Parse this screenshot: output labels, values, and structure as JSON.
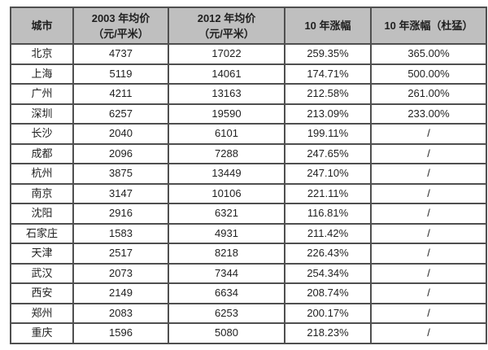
{
  "chart_data": {
    "type": "table",
    "title": "",
    "columns": [
      "城市",
      "2003 年均价（元/平米）",
      "2012 年均价（元/平米）",
      "10 年涨幅",
      "10 年涨幅（杜猛）"
    ],
    "header_lines": [
      [
        "城市"
      ],
      [
        "2003 年均价",
        "（元/平米）"
      ],
      [
        "2012 年均价",
        "（元/平米）"
      ],
      [
        "10 年涨幅"
      ],
      [
        "10 年涨幅（杜猛）"
      ]
    ],
    "rows": [
      [
        "北京",
        "4737",
        "17022",
        "259.35%",
        "365.00%"
      ],
      [
        "上海",
        "5119",
        "14061",
        "174.71%",
        "500.00%"
      ],
      [
        "广州",
        "4211",
        "13163",
        "212.58%",
        "261.00%"
      ],
      [
        "深圳",
        "6257",
        "19590",
        "213.09%",
        "233.00%"
      ],
      [
        "长沙",
        "2040",
        "6101",
        "199.11%",
        "/"
      ],
      [
        "成都",
        "2096",
        "7288",
        "247.65%",
        "/"
      ],
      [
        "杭州",
        "3875",
        "13449",
        "247.10%",
        "/"
      ],
      [
        "南京",
        "3147",
        "10106",
        "221.11%",
        "/"
      ],
      [
        "沈阳",
        "2916",
        "6321",
        "116.81%",
        "/"
      ],
      [
        "石家庄",
        "1583",
        "4931",
        "211.42%",
        "/"
      ],
      [
        "天津",
        "2517",
        "8218",
        "226.43%",
        "/"
      ],
      [
        "武汉",
        "2073",
        "7344",
        "254.34%",
        "/"
      ],
      [
        "西安",
        "2149",
        "6634",
        "208.74%",
        "/"
      ],
      [
        "郑州",
        "2083",
        "6253",
        "200.17%",
        "/"
      ],
      [
        "重庆",
        "1596",
        "5080",
        "218.23%",
        "/"
      ]
    ]
  },
  "colors": {
    "header_bg": "#bfbfbf",
    "border": "#4f4f4f",
    "text": "#1f1f1f",
    "cell_bg": "#ffffff"
  }
}
